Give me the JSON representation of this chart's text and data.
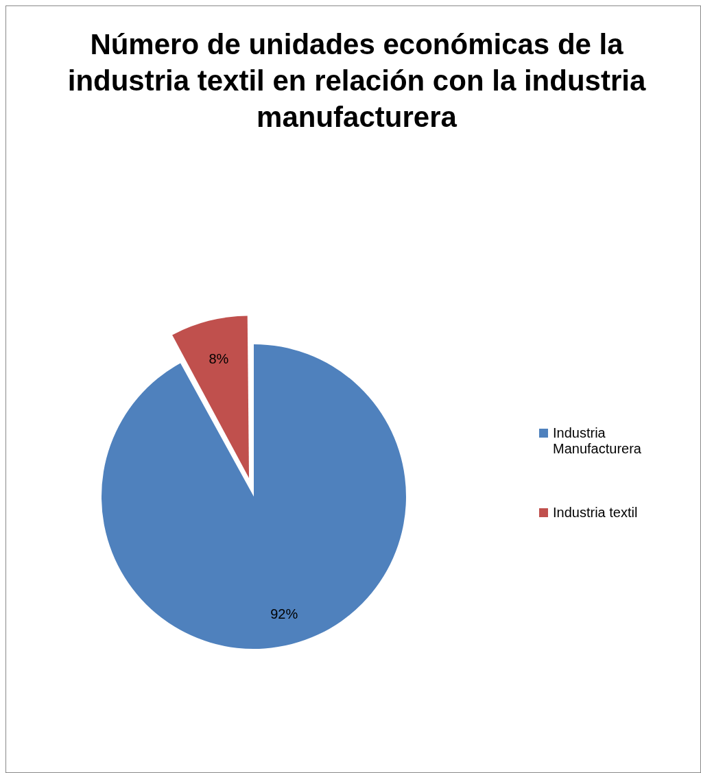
{
  "chart_data": {
    "type": "pie",
    "title": "Número de unidades económicas de la industria textil en relación con la industria manufacturera",
    "categories": [
      "Industria Manufacturera",
      "Industria textil"
    ],
    "values": [
      92,
      8
    ],
    "colors": [
      "#4f81bd",
      "#c0504d"
    ],
    "value_labels": [
      "92%",
      "8%"
    ],
    "legend": "right"
  }
}
